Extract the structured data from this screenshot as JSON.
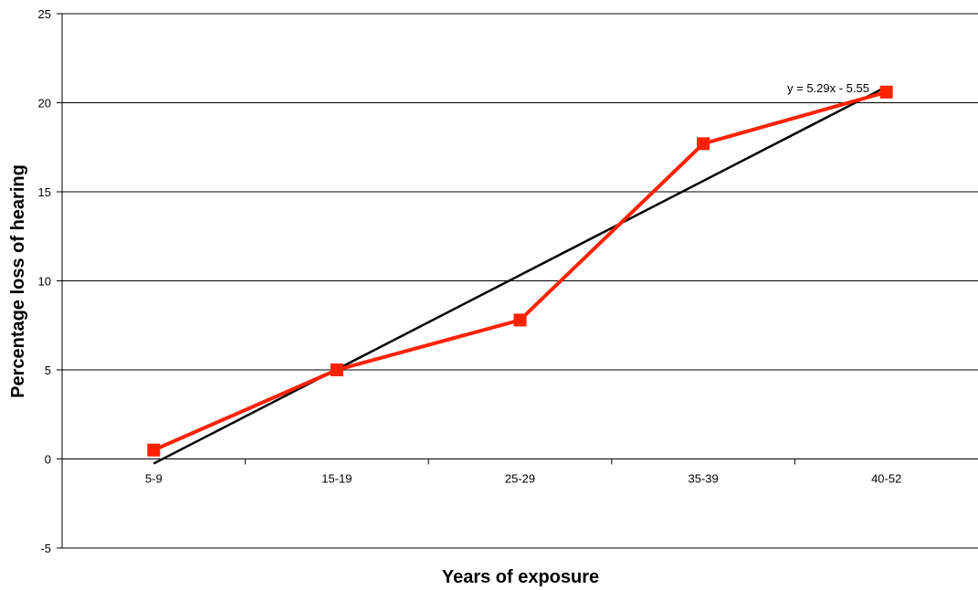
{
  "chart_data": {
    "type": "line",
    "title": "",
    "xlabel": "Years of exposure",
    "ylabel": "Percentage loss of hearing",
    "categories": [
      "5-9",
      "15-19",
      "25-29",
      "35-39",
      "40-52"
    ],
    "series": [
      {
        "values": [
          0.5,
          5.0,
          7.8,
          17.7,
          20.6
        ],
        "color": "#ff2200",
        "marker": "square"
      }
    ],
    "trendline": {
      "type": "linear",
      "slope": 5.29,
      "intercept": -5.55,
      "equation": "y = 5.29x - 5.55",
      "color": "#000000"
    },
    "ylim": [
      -5,
      25
    ],
    "yticks": [
      "-5",
      "0",
      "5",
      "10",
      "15",
      "20",
      "25"
    ],
    "grid": true,
    "legend": "none"
  }
}
